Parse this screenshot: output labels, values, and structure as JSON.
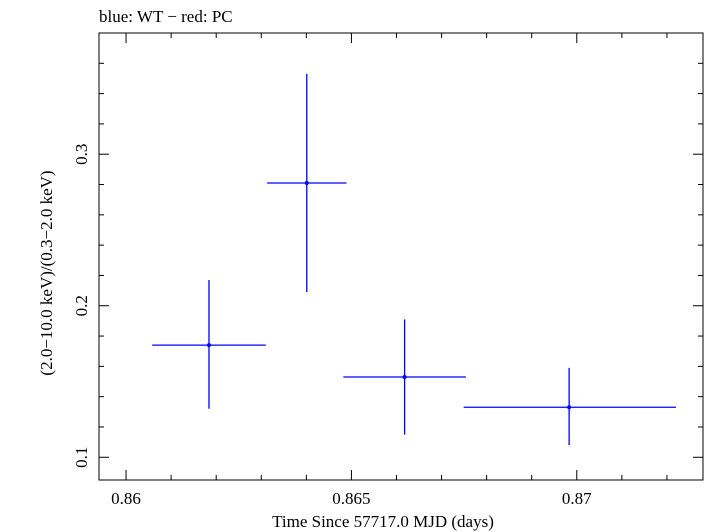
{
  "chart_data": {
    "type": "scatter",
    "title": "blue: WT − red: PC",
    "xlabel": "Time Since 57717.0 MJD (days)",
    "ylabel": "(2.0−10.0 keV)/(0.3−2.0 keV)",
    "xlim": [
      0.8594,
      0.8728
    ],
    "ylim": [
      0.085,
      0.38
    ],
    "xticks": [
      {
        "value": 0.86,
        "label": "0.86"
      },
      {
        "value": 0.865,
        "label": "0.865"
      },
      {
        "value": 0.87,
        "label": "0.87"
      }
    ],
    "yticks": [
      {
        "value": 0.1,
        "label": "0.1"
      },
      {
        "value": 0.2,
        "label": "0.2"
      },
      {
        "value": 0.3,
        "label": "0.3"
      }
    ],
    "series": [
      {
        "name": "WT",
        "color": "#0000ff",
        "points": [
          {
            "x": 0.86184,
            "y": 0.174,
            "xerr_low": 0.00126,
            "xerr_high": 0.00126,
            "yerr_low": 0.042,
            "yerr_high": 0.043
          },
          {
            "x": 0.86401,
            "y": 0.281,
            "xerr_low": 0.00088,
            "xerr_high": 0.00088,
            "yerr_low": 0.072,
            "yerr_high": 0.072
          },
          {
            "x": 0.86618,
            "y": 0.153,
            "xerr_low": 0.00136,
            "xerr_high": 0.00136,
            "yerr_low": 0.038,
            "yerr_high": 0.038
          },
          {
            "x": 0.86983,
            "y": 0.133,
            "xerr_low": 0.00234,
            "xerr_high": 0.00237,
            "yerr_low": 0.025,
            "yerr_high": 0.026
          }
        ]
      }
    ]
  }
}
